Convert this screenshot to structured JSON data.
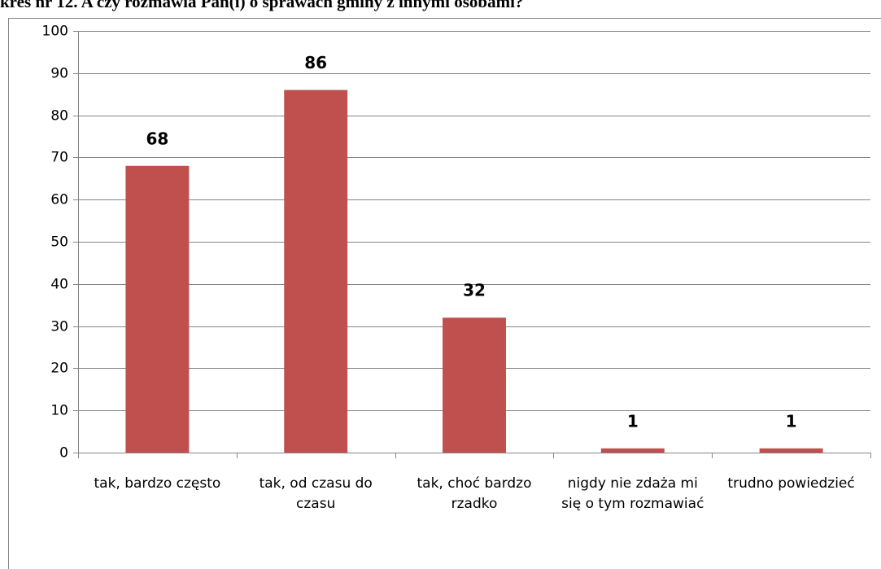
{
  "chart_data": {
    "type": "bar",
    "title": "kres nr 12. A czy rozmawia Pan(i) o sprawach gminy z innymi osobami?",
    "categories": [
      "tak, bardzo często",
      "tak, od czasu do czasu",
      "tak, choć bardzo rzadko",
      "nigdy nie zdaża mi się o tym rozmawiać",
      "trudno powiedzieć"
    ],
    "values": [
      68,
      86,
      32,
      1,
      1
    ],
    "color": "#c0504d",
    "ylim": [
      0,
      100
    ],
    "yticks": [
      0,
      10,
      20,
      30,
      40,
      50,
      60,
      70,
      80,
      90,
      100
    ],
    "grid": true
  }
}
